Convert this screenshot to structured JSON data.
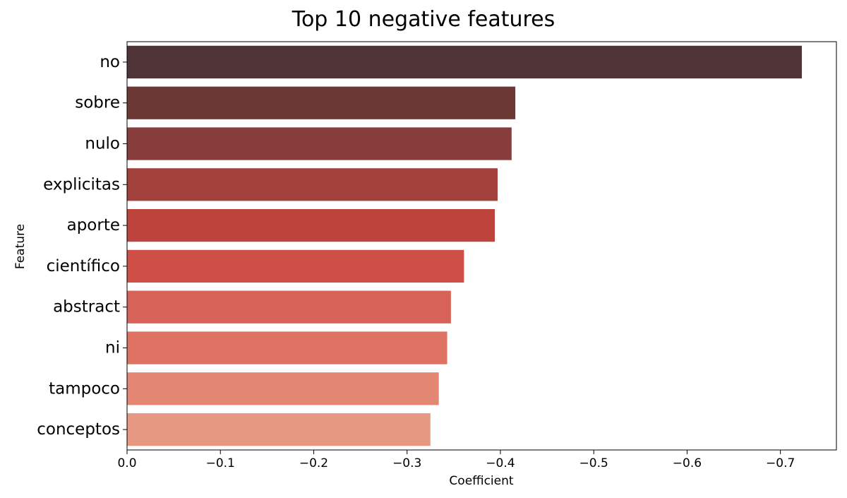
{
  "chart_data": {
    "type": "bar",
    "orientation": "horizontal",
    "title": "Top 10 negative features",
    "xlabel": "Coefficient",
    "ylabel": "Feature",
    "categories": [
      "no",
      "sobre",
      "nulo",
      "explicitas",
      "aporte",
      "científico",
      "abstract",
      "ni",
      "tampoco",
      "conceptos"
    ],
    "values": [
      -0.723,
      -0.416,
      -0.412,
      -0.397,
      -0.394,
      -0.361,
      -0.347,
      -0.343,
      -0.334,
      -0.325
    ],
    "xlim": [
      0.0,
      -0.76
    ],
    "xticks": [
      0.0,
      -0.1,
      -0.2,
      -0.3,
      -0.4,
      -0.5,
      -0.6,
      -0.7
    ],
    "xtick_labels": [
      "0.0",
      "−0.1",
      "−0.2",
      "−0.3",
      "−0.4",
      "−0.5",
      "−0.6",
      "−0.7"
    ],
    "grid": false,
    "colors": [
      "#503336",
      "#6b3836",
      "#873d3b",
      "#a2413c",
      "#bd443d",
      "#cd4f45",
      "#d66258",
      "#de7363",
      "#e48674",
      "#e79883"
    ]
  }
}
